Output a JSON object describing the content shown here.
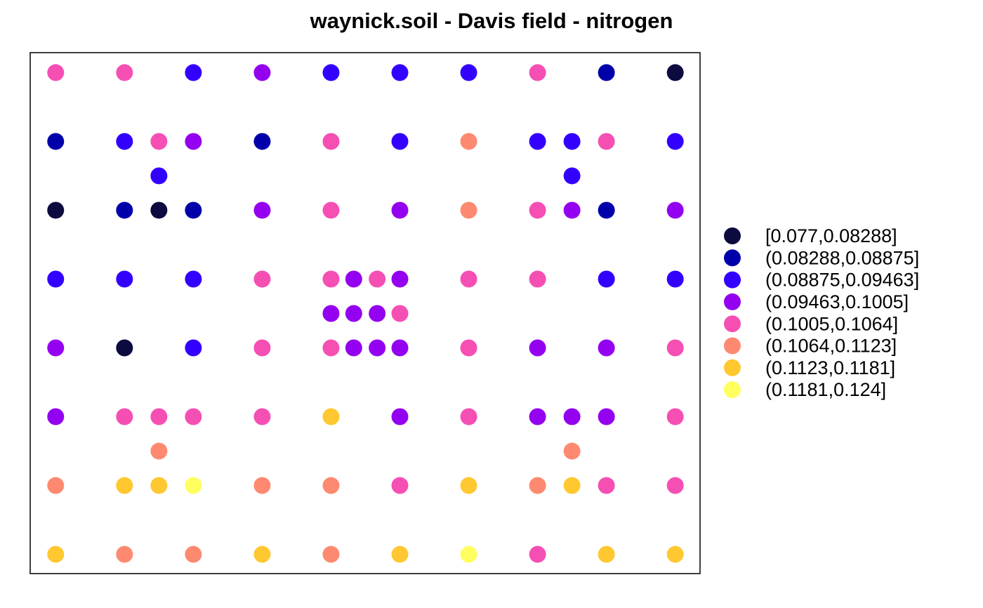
{
  "chart_data": {
    "type": "scatter",
    "title": "waynick.soil - Davis field - nitrogen",
    "xlim": [
      -0.37,
      9.36
    ],
    "ylim": [
      -0.28,
      7.29
    ],
    "marker_radius": 12,
    "series": [
      {
        "name": "[0.077,0.08288]",
        "color": "#0c0a3e",
        "x": [
          9,
          0,
          1.5,
          1
        ],
        "values": [
          7,
          5,
          5,
          3
        ]
      },
      {
        "name": "(0.08288,0.08875]",
        "color": "#0000aa",
        "x": [
          8,
          0,
          3,
          1,
          2,
          8
        ],
        "values": [
          7,
          6,
          6,
          5,
          5,
          5
        ]
      },
      {
        "name": "(0.08875,0.09463]",
        "color": "#3300ff",
        "x": [
          2,
          4,
          5,
          6,
          1,
          5,
          7,
          7.5,
          9,
          1.5,
          7.5,
          0,
          1,
          2,
          8,
          9,
          2
        ],
        "values": [
          7,
          7,
          7,
          7,
          6,
          6,
          6,
          6,
          6,
          5.5,
          5.5,
          4,
          4,
          4,
          4,
          4,
          3
        ]
      },
      {
        "name": "(0.09463,0.1005]",
        "color": "#9400f0",
        "x": [
          3,
          2,
          3,
          5,
          7.5,
          9,
          4.33,
          5,
          4,
          4.33,
          4.67,
          0,
          4.33,
          4.67,
          5,
          7,
          8,
          0,
          5,
          7,
          7.5,
          8
        ],
        "values": [
          7,
          6,
          5,
          5,
          5,
          5,
          4,
          4,
          3.5,
          3.5,
          3.5,
          3,
          3,
          3,
          3,
          3,
          3,
          2,
          2,
          2,
          2,
          2
        ]
      },
      {
        "name": "(0.1005,0.1064]",
        "color": "#f54fb4",
        "x": [
          0,
          1,
          7,
          1.5,
          4,
          8,
          4,
          7,
          3,
          4,
          4.67,
          6,
          7,
          5,
          3,
          4,
          6,
          9,
          1,
          1.5,
          2,
          3,
          6,
          9,
          5,
          8,
          9,
          7
        ],
        "values": [
          7,
          7,
          7,
          6,
          6,
          6,
          5,
          5,
          4,
          4,
          4,
          4,
          4,
          3.5,
          3,
          3,
          3,
          3,
          2,
          2,
          2,
          2,
          2,
          2,
          1,
          1,
          1,
          0
        ]
      },
      {
        "name": "(0.1064,0.1123]",
        "color": "#fd8a70",
        "x": [
          6,
          6,
          1.5,
          7.5,
          0,
          3,
          4,
          7,
          1,
          2,
          4
        ],
        "values": [
          6,
          5,
          1.5,
          1.5,
          1,
          1,
          1,
          1,
          0,
          0,
          0
        ]
      },
      {
        "name": "(0.1123,0.1181]",
        "color": "#ffc830",
        "x": [
          4,
          1,
          1.5,
          6,
          7.5,
          0,
          3,
          5,
          8,
          9
        ],
        "values": [
          2,
          1,
          1,
          1,
          1,
          0,
          0,
          0,
          0,
          0
        ]
      },
      {
        "name": "(0.1181,0.124]",
        "color": "#ffff60",
        "x": [
          2,
          6
        ],
        "values": [
          1,
          0
        ]
      }
    ]
  }
}
